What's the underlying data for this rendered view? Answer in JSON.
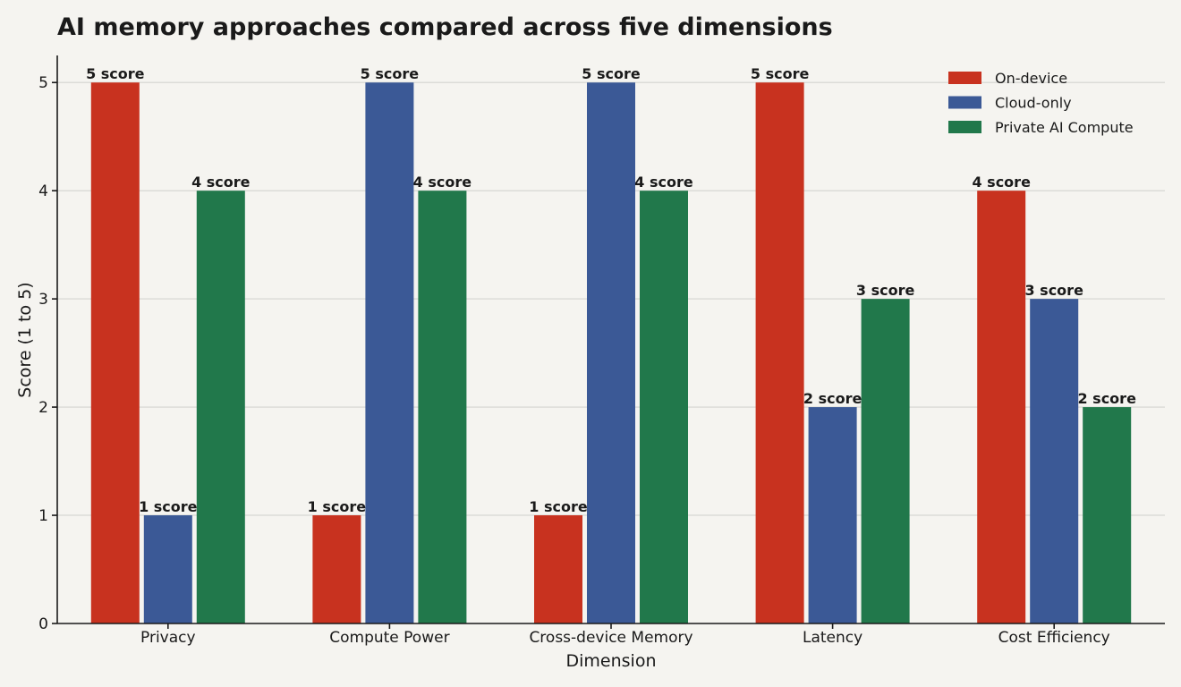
{
  "chart_data": {
    "type": "bar",
    "title": "AI memory approaches compared across five dimensions",
    "xlabel": "Dimension",
    "ylabel": "Score (1 to 5)",
    "ylim": [
      0,
      5.25
    ],
    "yticks": [
      0,
      1,
      2,
      3,
      4,
      5
    ],
    "grid": true,
    "legend_position": "top-right",
    "value_suffix": " score",
    "categories": [
      "Privacy",
      "Compute Power",
      "Cross-device Memory",
      "Latency",
      "Cost Efficiency"
    ],
    "series": [
      {
        "name": "On-device",
        "color": "#c8321f",
        "values": [
          5,
          1,
          1,
          5,
          4
        ]
      },
      {
        "name": "Cloud-only",
        "color": "#3b5996",
        "values": [
          1,
          5,
          5,
          2,
          3
        ]
      },
      {
        "name": "Private AI Compute",
        "color": "#21784b",
        "values": [
          4,
          4,
          4,
          3,
          2
        ]
      }
    ]
  }
}
